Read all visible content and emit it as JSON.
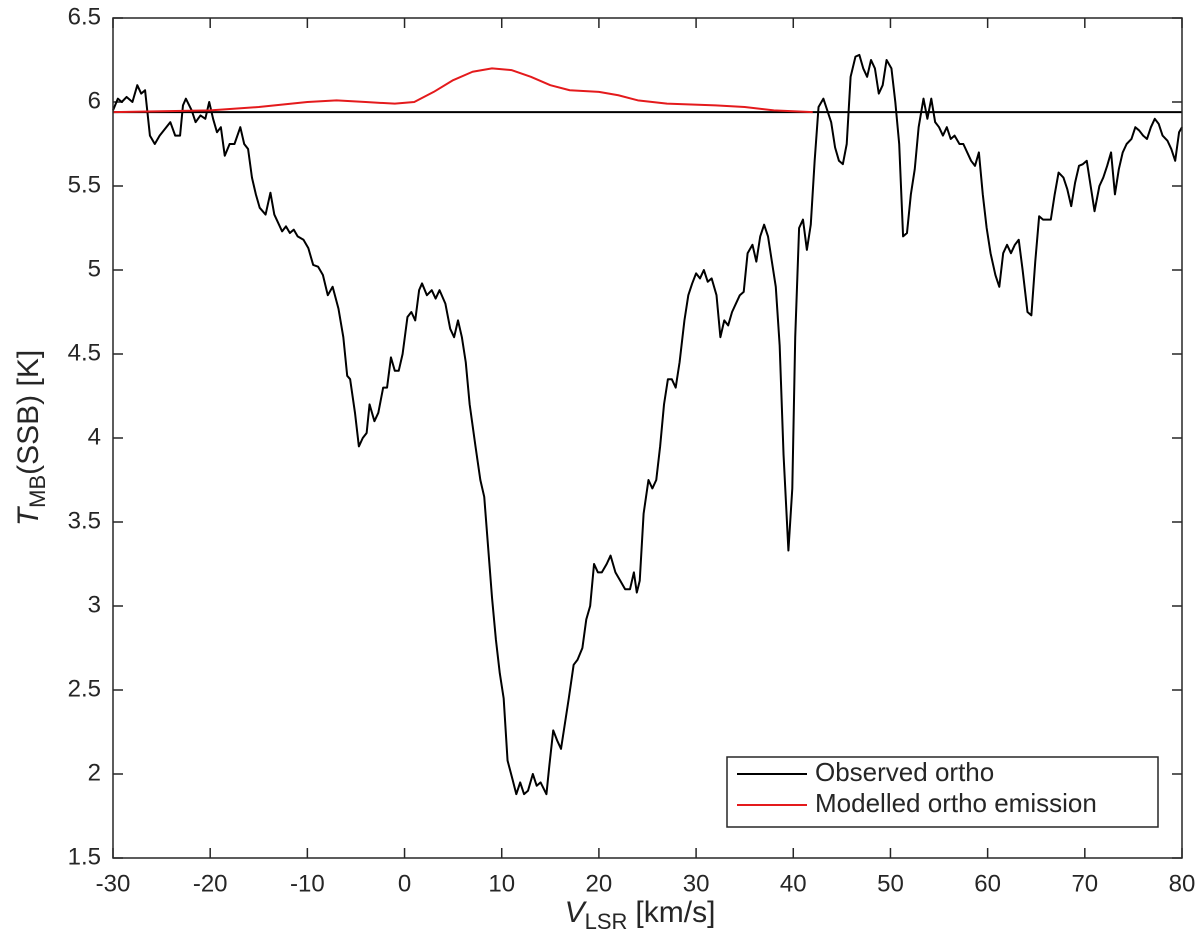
{
  "chart_data": {
    "type": "line",
    "xlabel": {
      "symbol": "V",
      "subscript": "LSR",
      "unit": "[km/s]"
    },
    "ylabel": {
      "symbol": "T",
      "subscript": "MB",
      "unit": "(SSB) [K]"
    },
    "xlim": [
      -30,
      80
    ],
    "xticks": [
      -30,
      -20,
      -10,
      0,
      10,
      20,
      30,
      40,
      50,
      60,
      70,
      80
    ],
    "ylim": [
      1.5,
      6.5
    ],
    "yticks": [
      1.5,
      2,
      2.5,
      3,
      3.5,
      4,
      4.5,
      5,
      5.5,
      6,
      6.5
    ],
    "hline": {
      "value": 5.94,
      "color": "#000000"
    },
    "legend": "lower right",
    "series": [
      {
        "name": "Observed ortho",
        "color": "#000000",
        "x": [
          -30,
          -29.5,
          -29.1,
          -28.6,
          -28,
          -27.5,
          -27.1,
          -26.7,
          -26.2,
          -25.7,
          -25.2,
          -24.1,
          -23.6,
          -23.1,
          -22.8,
          -22.5,
          -21.9,
          -21.5,
          -21,
          -20.5,
          -20.1,
          -19.7,
          -19.3,
          -18.9,
          -18.5,
          -18,
          -17.5,
          -16.9,
          -16.5,
          -16.1,
          -15.7,
          -15.3,
          -14.9,
          -14.3,
          -13.8,
          -13.4,
          -13,
          -12.6,
          -12.2,
          -11.8,
          -11.4,
          -11,
          -10.4,
          -9.9,
          -9.4,
          -8.9,
          -8.4,
          -7.9,
          -7.4,
          -6.8,
          -6.3,
          -5.9,
          -5.6,
          -5.1,
          -4.7,
          -4.3,
          -3.9,
          -3.6,
          -3.1,
          -2.7,
          -2.2,
          -1.8,
          -1.4,
          -1,
          -0.6,
          -0.2,
          0.3,
          0.7,
          1.1,
          1.5,
          1.8,
          2.3,
          2.8,
          3.2,
          3.6,
          4.2,
          4.7,
          5.1,
          5.5,
          5.9,
          6.3,
          6.7,
          7.3,
          7.8,
          8.2,
          8.6,
          9,
          9.4,
          9.8,
          10.2,
          10.6,
          11.1,
          11.5,
          11.9,
          12.3,
          12.7,
          13.2,
          13.6,
          14,
          14.6,
          14.9,
          15.3,
          15.7,
          16.1,
          16.5,
          16.9,
          17.4,
          17.8,
          18.3,
          18.7,
          19.1,
          19.5,
          19.9,
          20.3,
          20.8,
          21.2,
          21.7,
          22.2,
          22.7,
          23.2,
          23.6,
          23.9,
          24.2,
          24.6,
          25.1,
          25.5,
          25.9,
          26.3,
          26.7,
          27.1,
          27.5,
          27.9,
          28.3,
          28.8,
          29.2,
          29.6,
          30,
          30.4,
          30.8,
          31.2,
          31.6,
          32.1,
          32.5,
          32.9,
          33.3,
          33.7,
          34.1,
          34.5,
          34.9,
          35.3,
          35.8,
          36.2,
          36.6,
          37,
          37.4,
          37.8,
          38.2,
          38.6,
          39,
          39.5,
          39.9,
          40.2,
          40.6,
          41,
          41.4,
          41.8,
          42.2,
          42.6,
          43.1,
          43.5,
          43.9,
          44.3,
          44.7,
          45.1,
          45.5,
          45.9,
          46.4,
          46.8,
          47.2,
          47.6,
          48,
          48.4,
          48.8,
          49.2,
          49.6,
          50.1,
          50.5,
          50.9,
          51.3,
          51.7,
          52.1,
          52.5,
          52.9,
          53.4,
          53.8,
          54.2,
          54.6,
          55,
          55.4,
          55.8,
          56.2,
          56.6,
          57.1,
          57.5,
          57.9,
          58.3,
          58.7,
          59.1,
          59.5,
          59.9,
          60.3,
          60.8,
          61.2,
          61.6,
          62,
          62.4,
          62.8,
          63.2,
          63.6,
          64.1,
          64.5,
          64.9,
          65.3,
          65.7,
          66.1,
          66.5,
          66.9,
          67.3,
          67.8,
          68.2,
          68.6,
          69,
          69.4,
          69.8,
          70.2,
          70.6,
          71,
          71.5,
          71.9,
          72.3,
          72.7,
          73.1,
          73.5,
          73.9,
          74.3,
          74.8,
          75.2,
          75.6,
          76,
          76.4,
          76.8,
          77.2,
          77.6,
          78,
          78.5,
          78.9,
          79.3,
          79.7,
          80
        ],
        "values": [
          5.95,
          6.02,
          6,
          6.03,
          6,
          6.1,
          6.05,
          6.07,
          5.8,
          5.75,
          5.8,
          5.88,
          5.8,
          5.8,
          5.98,
          6.02,
          5.95,
          5.88,
          5.92,
          5.9,
          6,
          5.9,
          5.82,
          5.85,
          5.68,
          5.75,
          5.75,
          5.85,
          5.75,
          5.72,
          5.55,
          5.45,
          5.37,
          5.33,
          5.46,
          5.33,
          5.28,
          5.23,
          5.26,
          5.22,
          5.24,
          5.2,
          5.18,
          5.13,
          5.03,
          5.02,
          4.97,
          4.85,
          4.9,
          4.77,
          4.6,
          4.37,
          4.35,
          4.15,
          3.95,
          4,
          4.03,
          4.2,
          4.1,
          4.15,
          4.3,
          4.3,
          4.48,
          4.4,
          4.4,
          4.5,
          4.72,
          4.75,
          4.7,
          4.88,
          4.92,
          4.85,
          4.88,
          4.83,
          4.88,
          4.8,
          4.65,
          4.6,
          4.7,
          4.6,
          4.45,
          4.2,
          3.95,
          3.75,
          3.65,
          3.35,
          3.05,
          2.8,
          2.6,
          2.45,
          2.08,
          1.97,
          1.88,
          1.95,
          1.88,
          1.9,
          2,
          1.93,
          1.95,
          1.88,
          2.05,
          2.26,
          2.2,
          2.15,
          2.3,
          2.45,
          2.65,
          2.68,
          2.75,
          2.92,
          3,
          3.25,
          3.2,
          3.2,
          3.25,
          3.3,
          3.2,
          3.15,
          3.1,
          3.1,
          3.2,
          3.08,
          3.15,
          3.55,
          3.75,
          3.7,
          3.75,
          3.95,
          4.2,
          4.35,
          4.35,
          4.3,
          4.45,
          4.7,
          4.85,
          4.92,
          4.98,
          4.95,
          5,
          4.93,
          4.95,
          4.85,
          4.6,
          4.7,
          4.67,
          4.75,
          4.8,
          4.85,
          4.87,
          5.1,
          5.15,
          5.05,
          5.2,
          5.27,
          5.2,
          5.05,
          4.9,
          4.55,
          3.9,
          3.33,
          3.7,
          4.6,
          5.25,
          5.3,
          5.12,
          5.27,
          5.65,
          5.97,
          6.02,
          5.95,
          5.88,
          5.73,
          5.65,
          5.63,
          5.75,
          6.15,
          6.27,
          6.28,
          6.2,
          6.15,
          6.25,
          6.2,
          6.05,
          6.1,
          6.25,
          6.2,
          6,
          5.75,
          5.2,
          5.22,
          5.45,
          5.6,
          5.85,
          6.02,
          5.9,
          6.02,
          5.88,
          5.85,
          5.8,
          5.85,
          5.78,
          5.8,
          5.75,
          5.75,
          5.7,
          5.65,
          5.62,
          5.7,
          5.45,
          5.25,
          5.1,
          4.97,
          4.9,
          5.1,
          5.15,
          5.1,
          5.15,
          5.18,
          5,
          4.75,
          4.73,
          5.05,
          5.32,
          5.3,
          5.3,
          5.3,
          5.45,
          5.58,
          5.55,
          5.48,
          5.38,
          5.52,
          5.62,
          5.63,
          5.65,
          5.5,
          5.35,
          5.5,
          5.55,
          5.62,
          5.7,
          5.45,
          5.6,
          5.7,
          5.75,
          5.78,
          5.85,
          5.83,
          5.8,
          5.78,
          5.85,
          5.9,
          5.87,
          5.8,
          5.77,
          5.72,
          5.65,
          5.82,
          5.85
        ]
      },
      {
        "name": "Modelled ortho emission",
        "color": "#e41a1c",
        "x": [
          -30,
          -25,
          -20,
          -15,
          -10,
          -7,
          -4,
          -1,
          1,
          3,
          5,
          7,
          9,
          11,
          13,
          15,
          17,
          20,
          22,
          24,
          27,
          32,
          35,
          38,
          42
        ],
        "values": [
          5.94,
          5.945,
          5.95,
          5.97,
          6,
          6.01,
          6,
          5.99,
          6,
          6.06,
          6.13,
          6.18,
          6.2,
          6.19,
          6.15,
          6.1,
          6.07,
          6.06,
          6.04,
          6.01,
          5.99,
          5.98,
          5.97,
          5.95,
          5.94
        ]
      }
    ]
  }
}
